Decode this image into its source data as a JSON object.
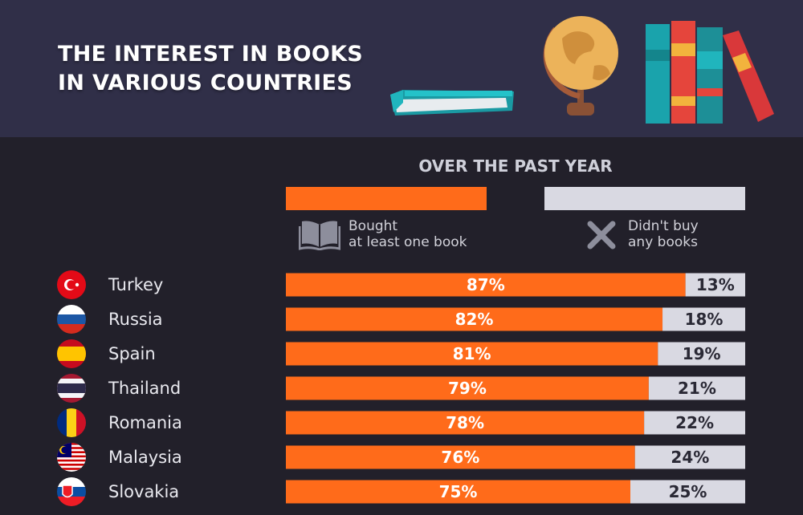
{
  "header": {
    "title_line1": "THE INTEREST IN BOOKS",
    "title_line2": "IN VARIOUS COUNTRIES"
  },
  "colors": {
    "header_bg": "#302f48",
    "page_bg": "#22202a",
    "bought": "#ff6b1a",
    "didnt_buy": "#d9d9e2"
  },
  "legend": {
    "bought_label": "Bought\nat least one book",
    "didnt_label": "Didn't buy\nany books",
    "bought_icon": "open-book-icon",
    "didnt_icon": "x-icon"
  },
  "chart_data": {
    "type": "bar",
    "stacked": true,
    "orientation": "horizontal",
    "title": "OVER THE PAST YEAR",
    "categories": [
      "Turkey",
      "Russia",
      "Spain",
      "Thailand",
      "Romania",
      "Malaysia",
      "Slovakia"
    ],
    "flags": [
      "turkey-flag-icon",
      "russia-flag-icon",
      "spain-flag-icon",
      "thailand-flag-icon",
      "romania-flag-icon",
      "malaysia-flag-icon",
      "slovakia-flag-icon"
    ],
    "series": [
      {
        "name": "Bought at least one book",
        "values": [
          87,
          82,
          81,
          79,
          78,
          76,
          75
        ]
      },
      {
        "name": "Didn't buy any books",
        "values": [
          13,
          18,
          19,
          21,
          22,
          24,
          25
        ]
      }
    ],
    "value_suffix": "%",
    "xlim": [
      0,
      100
    ]
  }
}
